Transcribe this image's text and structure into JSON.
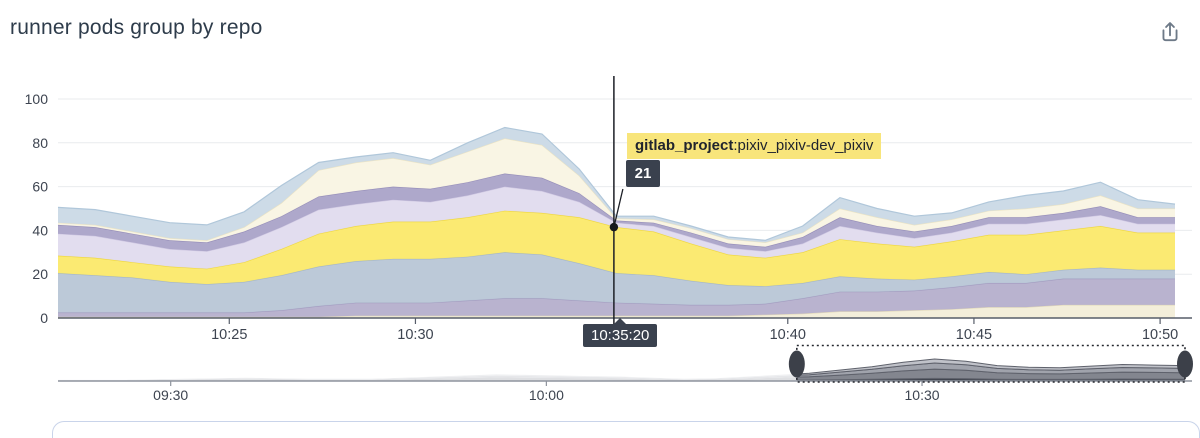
{
  "header": {
    "title": "runner pods group by repo"
  },
  "tooltip": {
    "series_bold": "gitlab_project",
    "series_rest": ":pixiv_pixiv-dev_pixiv",
    "value": "21",
    "time": "10:35:20"
  },
  "colors": {
    "title_text": "#2e3c4b",
    "axis_line": "#565d69",
    "grid_line": "#e9ebee",
    "tick_text": "#3d4450",
    "tooltip_bg": "#f8e57b",
    "badge_bg": "#3a414e",
    "share_icon": "#6e7a88",
    "crosshair": "#1c1f26"
  },
  "chart_data": {
    "type": "area",
    "stacked": true,
    "title": "runner pods group by repo",
    "xlabel": "",
    "ylabel": "",
    "x_domain": [
      "10:20",
      "10:50"
    ],
    "x_step_minutes": 1,
    "ylim": [
      0,
      105
    ],
    "y_ticks": [
      0,
      20,
      40,
      60,
      80,
      100
    ],
    "grid": true,
    "legend": "none (tooltip only)",
    "x_ticks": [
      {
        "label": "10:25",
        "t": 4.6
      },
      {
        "label": "10:30",
        "t": 9.6
      },
      {
        "label": "10:40",
        "t": 19.6
      },
      {
        "label": "10:45",
        "t": 24.6
      },
      {
        "label": "10:50",
        "t": 29.6
      }
    ],
    "series": [
      {
        "label": "",
        "color": "#f2edd8",
        "stroke": "#e2d9ba",
        "values": [
          0.5,
          0.5,
          0.5,
          0.5,
          0.5,
          0.5,
          0.5,
          0.5,
          1,
          1,
          1,
          1,
          1,
          1,
          1,
          1,
          1,
          1,
          1,
          1.5,
          2,
          3,
          3,
          3.5,
          4,
          5,
          5,
          6,
          6,
          6,
          6
        ]
      },
      {
        "label": "",
        "color": "#b6b0cd",
        "stroke": "#a39cc0",
        "values": [
          2,
          2,
          2,
          2,
          2,
          2,
          3,
          5,
          6,
          6,
          6,
          7,
          8,
          8,
          7,
          6,
          5.5,
          5,
          5,
          5,
          7,
          9,
          9,
          9,
          10,
          11,
          11,
          12,
          12,
          12,
          12
        ]
      },
      {
        "label": "",
        "color": "#b9c7d6",
        "stroke": "#a4b6c9",
        "values": [
          18,
          17,
          16,
          14,
          13,
          14,
          16,
          18,
          19,
          20,
          20,
          20,
          21,
          20,
          17,
          13.5,
          13,
          11,
          9,
          8,
          7,
          7,
          6,
          5,
          5,
          5,
          4,
          4,
          5,
          4,
          4
        ]
      },
      {
        "label": "gitlab_project:pixiv_pixiv-dev_pixiv",
        "color": "#fbe96c",
        "stroke": "#efd73c",
        "values": [
          8,
          8,
          7,
          7,
          7,
          9,
          12,
          15,
          16,
          17,
          17,
          18,
          19,
          19,
          21,
          21,
          20,
          17,
          14,
          13,
          14,
          17,
          16,
          15,
          16,
          17,
          18,
          18,
          19,
          17,
          17
        ]
      },
      {
        "label": "",
        "color": "#e1dcee",
        "stroke": "#cfc8e2",
        "values": [
          10,
          10,
          9,
          8,
          8,
          9,
          10,
          11,
          10,
          10,
          9,
          10,
          11,
          10,
          7,
          2,
          2.5,
          3,
          3,
          3,
          4,
          6,
          5,
          4,
          4,
          5,
          5,
          5,
          5,
          4,
          4
        ]
      },
      {
        "label": "",
        "color": "#aba4c9",
        "stroke": "#948cb8",
        "values": [
          4,
          4,
          4,
          4,
          4,
          5,
          5,
          6,
          6,
          6,
          6,
          6,
          6,
          6,
          4,
          1,
          1.5,
          2,
          2,
          2,
          3,
          4,
          3,
          3,
          3,
          3,
          3,
          3,
          4,
          3,
          3
        ]
      },
      {
        "label": "",
        "color": "#f9f5e3",
        "stroke": "#ece4c4",
        "values": [
          1,
          1,
          1,
          1,
          1,
          2,
          6,
          12,
          13,
          13,
          11,
          14,
          16,
          15,
          8,
          1,
          1.5,
          2,
          2,
          2,
          2,
          4,
          4,
          3,
          3,
          3,
          4,
          4,
          5,
          4,
          4
        ]
      },
      {
        "label": "",
        "color": "#cbdae6",
        "stroke": "#b0c7da",
        "values": [
          7,
          7,
          7,
          7,
          7,
          7,
          8,
          3.5,
          2.5,
          2.5,
          2,
          4,
          5,
          5,
          3,
          1,
          1.5,
          1,
          1,
          1,
          3,
          5,
          4,
          4,
          3,
          4,
          6,
          6,
          6,
          4,
          2
        ]
      }
    ],
    "highlight": {
      "series_label": "gitlab_project:pixiv_pixiv-dev_pixiv",
      "series_index": 3,
      "value": 21,
      "cum_value": 41.5,
      "t": 14.93,
      "time_label": "10:35:20"
    },
    "minimap": {
      "x_domain": [
        "09:21",
        "10:51"
      ],
      "t_step_minutes": 2.5,
      "x_ticks": [
        {
          "label": "09:30",
          "t": 9
        },
        {
          "label": "10:00",
          "t": 39
        },
        {
          "label": "10:30",
          "t": 69
        }
      ],
      "totals": [
        1,
        1,
        1,
        1.5,
        2,
        2.5,
        3,
        2.5,
        2,
        2,
        2,
        3,
        4,
        5,
        6,
        5.5,
        5,
        4.5,
        4,
        3,
        2,
        2.5,
        4,
        5.5,
        7,
        10,
        13,
        17,
        20,
        18,
        14,
        12.5,
        12,
        13.5,
        15,
        14.5,
        14
      ],
      "layer_fractions": [
        0.12,
        0.42,
        0.28,
        0.18
      ],
      "light_colors": [
        "#d9dadd",
        "#dfe0e3",
        "#e6e7ea",
        "#eeeff1"
      ],
      "dark_colors": [
        "#41454f",
        "#83868f",
        "#a0a3ac",
        "#c0c2c9"
      ],
      "dark_stroke": "#5f626c",
      "brush": {
        "t0": 59,
        "t1": 90
      }
    }
  }
}
